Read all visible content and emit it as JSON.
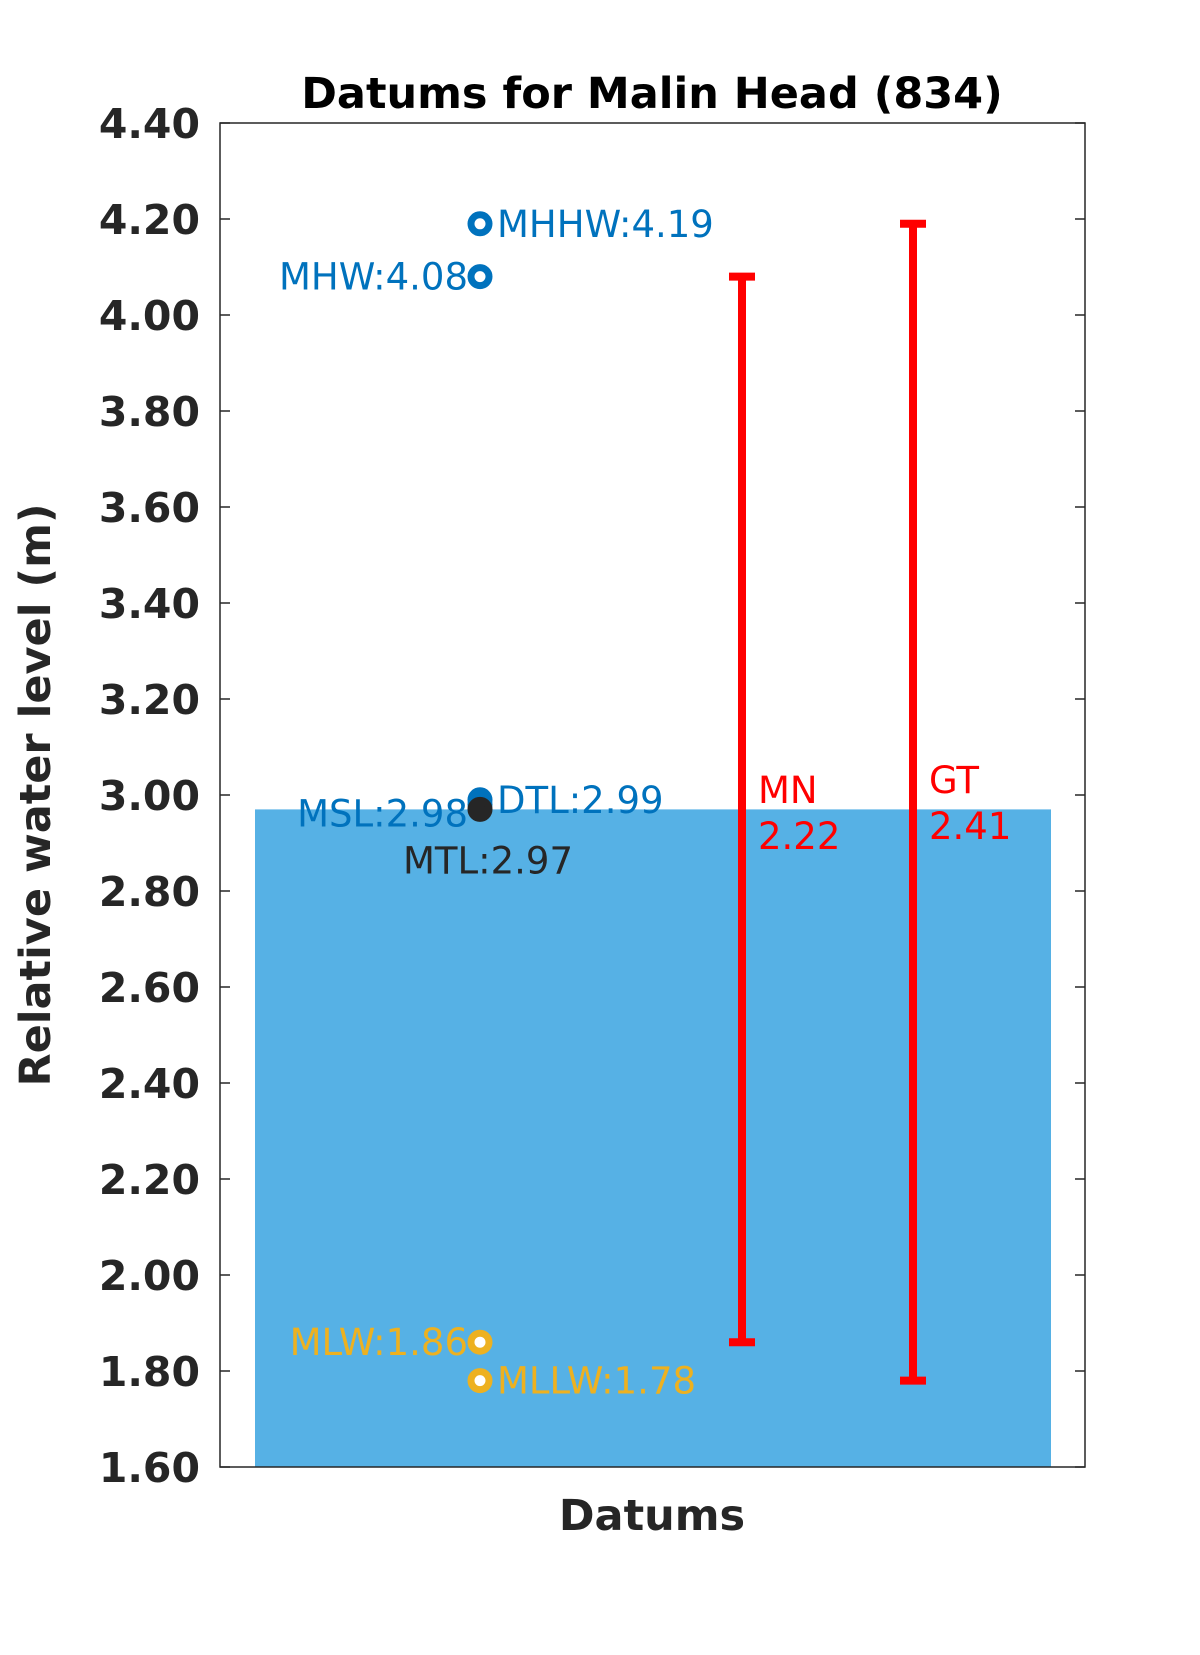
{
  "chart_data": {
    "type": "scatter",
    "title": "Datums for Malin Head (834)",
    "xlabel": "Datums",
    "ylabel": "Relative water level (m)",
    "ylim": [
      1.6,
      4.4
    ],
    "yticks": [
      "1.60",
      "1.80",
      "2.00",
      "2.20",
      "2.40",
      "2.60",
      "2.80",
      "3.00",
      "3.20",
      "3.40",
      "3.60",
      "3.80",
      "4.00",
      "4.20",
      "4.40"
    ],
    "grid": false,
    "background_bar": {
      "top": 2.97,
      "bottom": 1.6,
      "color": "#56B1E5"
    },
    "points": [
      {
        "label": "MHHW:4.19",
        "name": "MHHW",
        "value": 4.19,
        "color": "#0072BD",
        "side": "right"
      },
      {
        "label": "MHW:4.08",
        "name": "MHW",
        "value": 4.08,
        "color": "#0072BD",
        "side": "left"
      },
      {
        "label": "DTL:2.99",
        "name": "DTL",
        "value": 2.99,
        "color": "#0072BD",
        "side": "right"
      },
      {
        "label": "MSL:2.98",
        "name": "MSL",
        "value": 2.98,
        "color": "#0072BD",
        "side": "left"
      },
      {
        "label": "MTL:2.97",
        "name": "MTL",
        "value": 2.97,
        "color": "#262626",
        "side": "below"
      },
      {
        "label": "MLW:1.86",
        "name": "MLW",
        "value": 1.86,
        "color": "#EDB120",
        "side": "left"
      },
      {
        "label": "MLLW:1.78",
        "name": "MLLW",
        "value": 1.78,
        "color": "#EDB120",
        "side": "right"
      }
    ],
    "ranges": [
      {
        "name": "MN",
        "value": "2.22",
        "bottom": 1.86,
        "top": 4.08,
        "color": "#ff0000"
      },
      {
        "name": "GT",
        "value": "2.41",
        "bottom": 1.78,
        "top": 4.19,
        "color": "#ff0000"
      }
    ]
  }
}
